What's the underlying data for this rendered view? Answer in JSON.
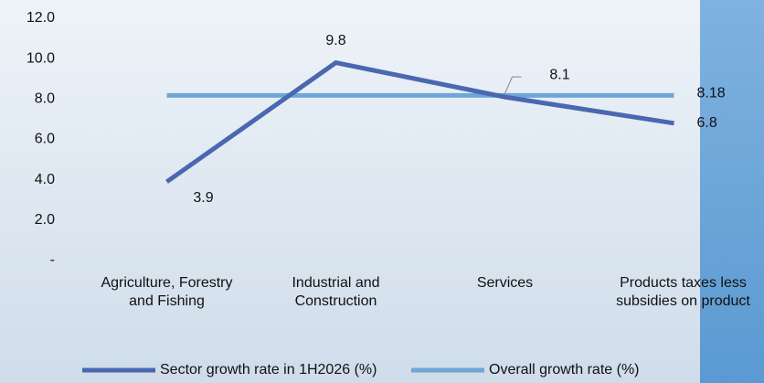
{
  "chart_data": {
    "type": "line",
    "categories": [
      "Agriculture, Forestry and Fishing",
      "Industrial and Construction",
      "Services",
      "Products taxes less subsidies on product"
    ],
    "series": [
      {
        "name": "Sector growth rate in 1H2026 (%)",
        "color": "#4a67b0",
        "values": [
          3.9,
          9.8,
          8.1,
          6.8
        ]
      },
      {
        "name": "Overall growth rate (%)",
        "color": "#6fa6d6",
        "values": [
          8.18,
          8.18,
          8.18,
          8.18
        ]
      }
    ],
    "ylim": [
      0,
      12
    ],
    "yticks": [
      {
        "value": 0,
        "label": "-"
      },
      {
        "value": 2,
        "label": "2.0"
      },
      {
        "value": 4,
        "label": "4.0"
      },
      {
        "value": 6,
        "label": "6.0"
      },
      {
        "value": 8,
        "label": "8.0"
      },
      {
        "value": 10,
        "label": "10.0"
      },
      {
        "value": 12,
        "label": "12.0"
      }
    ],
    "legend": "bottom"
  }
}
